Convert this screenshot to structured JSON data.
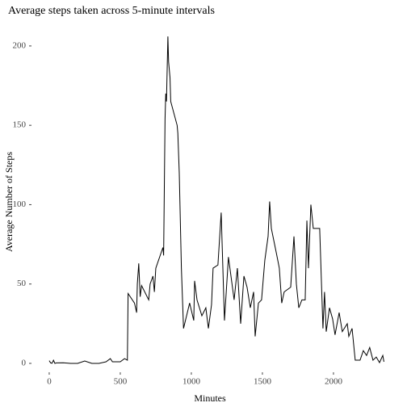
{
  "chart_data": {
    "type": "line",
    "title": "Average steps taken across 5-minute intervals",
    "xlabel": "Minutes",
    "ylabel": "Average Number of Steps",
    "x": [
      0,
      10,
      20,
      30,
      40,
      50,
      100,
      150,
      200,
      250,
      300,
      350,
      400,
      430,
      445,
      500,
      530,
      550,
      555,
      600,
      615,
      620,
      630,
      640,
      650,
      700,
      710,
      730,
      740,
      750,
      800,
      805,
      815,
      820,
      825,
      835,
      840,
      850,
      855,
      900,
      905,
      915,
      930,
      945,
      988,
      1017,
      1023,
      1040,
      1074,
      1102,
      1120,
      1142,
      1153,
      1187,
      1210,
      1233,
      1261,
      1301,
      1324,
      1347,
      1370,
      1392,
      1415,
      1438,
      1449,
      1472,
      1494,
      1517,
      1540,
      1551,
      1563,
      1597,
      1619,
      1636,
      1653,
      1699,
      1722,
      1739,
      1756,
      1778,
      1801,
      1813,
      1824,
      1841,
      1858,
      1903,
      1926,
      1937,
      1949,
      1972,
      1994,
      2011,
      2040,
      2062,
      2097,
      2108,
      2131,
      2153,
      2187,
      2210,
      2233,
      2255,
      2278,
      2301,
      2324,
      2347,
      2355
    ],
    "series": [
      {
        "name": "steps",
        "color": "#000000",
        "values": [
          1.7,
          0.3,
          0.1,
          2,
          0,
          0.3,
          0.4,
          0,
          0,
          1.5,
          0,
          0,
          1,
          3,
          1,
          1,
          3,
          2,
          44,
          38,
          32,
          50,
          63,
          42,
          49,
          40,
          50,
          55,
          45,
          60,
          73,
          68,
          154,
          170,
          165,
          206,
          190,
          180,
          165,
          150,
          145,
          120,
          60,
          22,
          38,
          27,
          52,
          40,
          30,
          35,
          22,
          37,
          60,
          62,
          95,
          27,
          67,
          40,
          60,
          25,
          55,
          48,
          35,
          45,
          17,
          38,
          40,
          65,
          80,
          102,
          85,
          70,
          60,
          38,
          45,
          48,
          80,
          50,
          35,
          40,
          40,
          90,
          60,
          100,
          85,
          85,
          22,
          45,
          20,
          35,
          28,
          18,
          32,
          20,
          25,
          17,
          22,
          2,
          2,
          8,
          5,
          10,
          2,
          4,
          0.5,
          5,
          1
        ]
      }
    ],
    "xlim": [
      -119,
      2381
    ],
    "ylim": [
      -5.1,
      208.6
    ],
    "xticks": [
      0,
      500,
      1000,
      1500,
      2000
    ],
    "yticks": [
      0,
      50,
      100,
      150,
      200
    ]
  }
}
